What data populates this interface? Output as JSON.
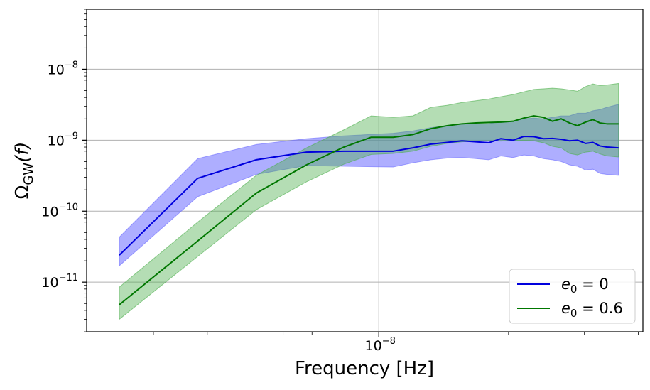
{
  "chart_data": {
    "type": "line",
    "title": "",
    "xlabel": "Frequency [Hz]",
    "ylabel": "Ω_GW(f)",
    "ylabel_main": "Ω",
    "ylabel_sub": "GW",
    "ylabel_tail": "(f)",
    "xscale": "log",
    "yscale": "log",
    "xlim": [
      2.1e-09,
      4.1e-08
    ],
    "ylim": [
      2e-12,
      7e-08
    ],
    "grid": true,
    "legend_position": "lower-right",
    "x_major_ticks": [
      {
        "value": 1e-08,
        "base": "10",
        "exp": "−8"
      }
    ],
    "y_major_ticks": [
      {
        "value": 1e-08,
        "base": "10",
        "exp": "−8"
      },
      {
        "value": 1e-09,
        "base": "10",
        "exp": "−9"
      },
      {
        "value": 1e-10,
        "base": "10",
        "exp": "−10"
      },
      {
        "value": 1e-11,
        "base": "10",
        "exp": "−11"
      }
    ],
    "series": [
      {
        "name": "e_0 = 0",
        "name_main": "e",
        "name_sub": "0",
        "name_tail": " = 0",
        "color": "#0000dd",
        "band_color": "#6b6bff",
        "x": [
          2.5e-09,
          3.8e-09,
          5.2e-09,
          6.8e-09,
          8.3e-09,
          1.08e-08,
          1.2e-08,
          1.32e-08,
          1.44e-08,
          1.56e-08,
          1.68e-08,
          1.8e-08,
          1.92e-08,
          2.05e-08,
          2.17e-08,
          2.29e-08,
          2.41e-08,
          2.53e-08,
          2.65e-08,
          2.77e-08,
          2.89e-08,
          3.02e-08,
          3.14e-08,
          3.26e-08,
          3.38e-08,
          3.6e-08
        ],
        "y": [
          2.4e-11,
          2.9e-10,
          5.3e-10,
          6.8e-10,
          7e-10,
          7e-10,
          7.8e-10,
          8.8e-10,
          9.3e-10,
          9.8e-10,
          9.5e-10,
          9.2e-10,
          1.05e-09,
          1e-09,
          1.13e-09,
          1.12e-09,
          1.05e-09,
          1.06e-09,
          1.03e-09,
          9.8e-10,
          1e-09,
          9e-10,
          9.3e-10,
          8.3e-10,
          8e-10,
          7.8e-10
        ],
        "y_low": [
          1.7e-11,
          1.6e-10,
          3.3e-10,
          4.4e-10,
          4.3e-10,
          4.2e-10,
          4.8e-10,
          5.3e-10,
          5.6e-10,
          5.7e-10,
          5.5e-10,
          5.3e-10,
          6e-10,
          5.7e-10,
          6.2e-10,
          6e-10,
          5.5e-10,
          5.3e-10,
          5e-10,
          4.5e-10,
          4.3e-10,
          3.8e-10,
          3.9e-10,
          3.4e-10,
          3.3e-10,
          3.2e-10
        ],
        "y_high": [
          4.3e-11,
          5.5e-10,
          8.7e-10,
          1.05e-09,
          1.15e-09,
          1.25e-09,
          1.35e-09,
          1.5e-09,
          1.6e-09,
          1.7e-09,
          1.7e-09,
          1.7e-09,
          1.85e-09,
          1.85e-09,
          2e-09,
          2.05e-09,
          2e-09,
          2.1e-09,
          2.2e-09,
          2.2e-09,
          2.4e-09,
          2.4e-09,
          2.6e-09,
          2.7e-09,
          2.9e-09,
          3.2e-09
        ]
      },
      {
        "name": "e_0 = 0.6",
        "name_main": "e",
        "name_sub": "0",
        "name_tail": " = 0.6",
        "color": "#007700",
        "band_color": "#4caf4c",
        "x": [
          2.5e-09,
          3.8e-09,
          5.2e-09,
          6.8e-09,
          8.3e-09,
          9.6e-09,
          1.08e-08,
          1.2e-08,
          1.32e-08,
          1.44e-08,
          1.56e-08,
          1.68e-08,
          1.8e-08,
          1.92e-08,
          2.05e-08,
          2.17e-08,
          2.29e-08,
          2.41e-08,
          2.53e-08,
          2.65e-08,
          2.77e-08,
          2.89e-08,
          3.02e-08,
          3.14e-08,
          3.26e-08,
          3.38e-08,
          3.6e-08
        ],
        "y": [
          4.8e-12,
          3.8e-11,
          1.8e-10,
          4.5e-10,
          8e-10,
          1.1e-09,
          1.1e-09,
          1.2e-09,
          1.45e-09,
          1.6e-09,
          1.7e-09,
          1.75e-09,
          1.78e-09,
          1.8e-09,
          1.85e-09,
          2.05e-09,
          2.2e-09,
          2.1e-09,
          1.85e-09,
          2e-09,
          1.75e-09,
          1.6e-09,
          1.8e-09,
          1.95e-09,
          1.75e-09,
          1.7e-09,
          1.7e-09
        ],
        "y_low": [
          3e-12,
          2.3e-11,
          1.05e-10,
          2.6e-10,
          4.6e-10,
          6.3e-10,
          6.5e-10,
          7e-10,
          8.2e-10,
          9e-10,
          9.5e-10,
          9.7e-10,
          9.8e-10,
          9.7e-10,
          9.9e-10,
          1e-09,
          9.8e-10,
          9.2e-10,
          8.2e-10,
          7.8e-10,
          6.5e-10,
          6.2e-10,
          6.8e-10,
          7e-10,
          6.4e-10,
          6e-10,
          5.8e-10
        ],
        "y_high": [
          8.5e-12,
          7e-11,
          3.2e-10,
          7.8e-10,
          1.4e-09,
          2.2e-09,
          2.1e-09,
          2.2e-09,
          2.9e-09,
          3.1e-09,
          3.4e-09,
          3.6e-09,
          3.8e-09,
          4.1e-09,
          4.4e-09,
          4.8e-09,
          5.2e-09,
          5.3e-09,
          5.4e-09,
          5.3e-09,
          5.1e-09,
          4.9e-09,
          5.7e-09,
          6.2e-09,
          5.9e-09,
          6e-09,
          6.3e-09
        ]
      }
    ]
  }
}
